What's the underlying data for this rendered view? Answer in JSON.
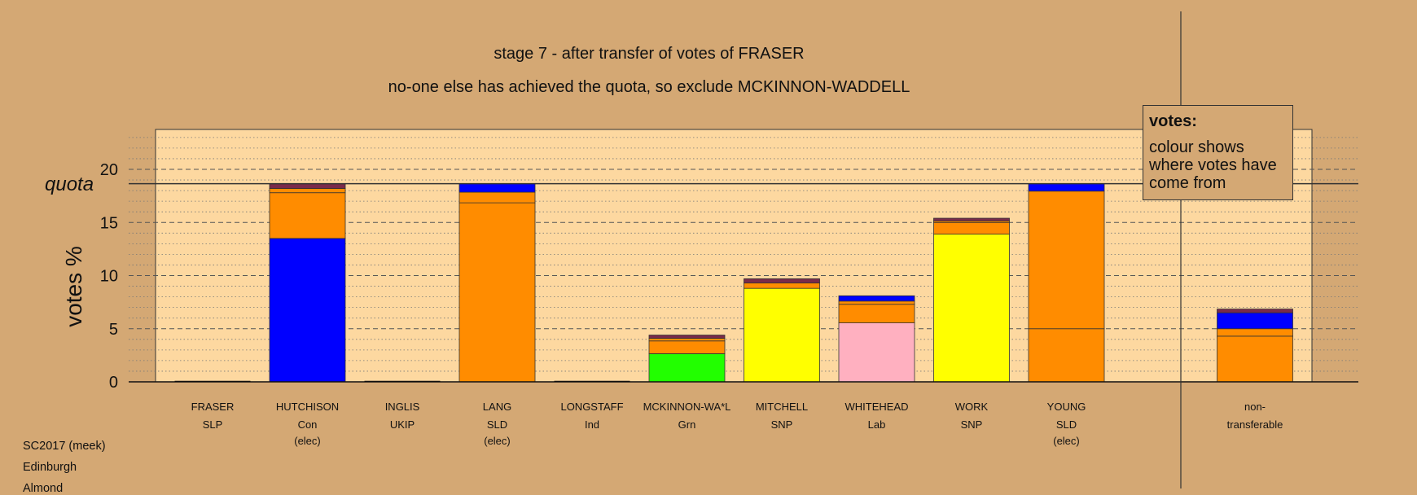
{
  "chart_data": {
    "type": "bar",
    "title": "stage 7 - after transfer of votes of FRASER",
    "subtitle": "no-one else has achieved the quota, so exclude MCKINNON-WADDELL",
    "ylabel": "votes %",
    "xlabel": "",
    "ylim": [
      0,
      23.5
    ],
    "yticks": [
      0,
      5,
      10,
      15,
      20
    ],
    "quota": 18.65,
    "quota_label": "quota",
    "grid": "dashed at major ticks, dotted at minor ticks",
    "legend": {
      "title": "votes:",
      "text": "colour shows where votes have come from",
      "placement": "top-right"
    },
    "colors": {
      "Con": "#0000ff",
      "SLD": "#ff8c00",
      "SNP": "#ffff00",
      "Lab": "#ffb0c0",
      "Grn": "#22ff00",
      "other": "#7a2a4a",
      "plot_background": "#fdd8a0",
      "page_background": "#d4a874"
    },
    "candidates": [
      {
        "name": "FRASER",
        "party": "SLP",
        "status": "",
        "segments": []
      },
      {
        "name": "HUTCHISON",
        "party": "Con",
        "status": "(elec)",
        "segments": [
          {
            "color": "#0000ff",
            "value": 13.5
          },
          {
            "color": "#ff8c00",
            "value": 4.3
          },
          {
            "color": "#ff8c00",
            "value": 0.4
          },
          {
            "color": "#7a2a4a",
            "value": 0.45
          }
        ]
      },
      {
        "name": "INGLIS",
        "party": "UKIP",
        "status": "",
        "segments": []
      },
      {
        "name": "LANG",
        "party": "SLD",
        "status": "(elec)",
        "segments": [
          {
            "color": "#ff8c00",
            "value": 16.85
          },
          {
            "color": "#ff8c00",
            "value": 1.0
          },
          {
            "color": "#0000ff",
            "value": 0.8
          }
        ]
      },
      {
        "name": "LONGSTAFF",
        "party": "Ind",
        "status": "",
        "segments": []
      },
      {
        "name": "MCKINNON-WA*L",
        "party": "Grn",
        "status": "",
        "segments": [
          {
            "color": "#22ff00",
            "value": 2.65
          },
          {
            "color": "#ff8c00",
            "value": 1.2
          },
          {
            "color": "#ff8c00",
            "value": 0.25
          },
          {
            "color": "#7a2a4a",
            "value": 0.3
          }
        ]
      },
      {
        "name": "MITCHELL",
        "party": "SNP",
        "status": "",
        "segments": [
          {
            "color": "#ffff00",
            "value": 8.8
          },
          {
            "color": "#ff8c00",
            "value": 0.5
          },
          {
            "color": "#7a2a4a",
            "value": 0.4
          }
        ]
      },
      {
        "name": "WHITEHEAD",
        "party": "Lab",
        "status": "",
        "segments": [
          {
            "color": "#ffb0c0",
            "value": 5.55
          },
          {
            "color": "#ff8c00",
            "value": 1.75
          },
          {
            "color": "#ff8c00",
            "value": 0.3
          },
          {
            "color": "#0000ff",
            "value": 0.5
          }
        ]
      },
      {
        "name": "WORK",
        "party": "SNP",
        "status": "",
        "segments": [
          {
            "color": "#ffff00",
            "value": 13.9
          },
          {
            "color": "#ff8c00",
            "value": 1.1
          },
          {
            "color": "#ff8c00",
            "value": 0.15
          },
          {
            "color": "#7a2a4a",
            "value": 0.25
          }
        ]
      },
      {
        "name": "YOUNG",
        "party": "SLD",
        "status": "(elec)",
        "segments": [
          {
            "color": "#ff8c00",
            "value": 5.0
          },
          {
            "color": "#ff8c00",
            "value": 12.95
          },
          {
            "color": "#0000ff",
            "value": 0.7
          }
        ]
      }
    ],
    "nontransferable": {
      "label_line1": "non-",
      "label_line2": "transferable",
      "segments": [
        {
          "color": "#ff8c00",
          "value": 4.3
        },
        {
          "color": "#ff8c00",
          "value": 0.7
        },
        {
          "color": "#0000ff",
          "value": 1.5
        },
        {
          "color": "#7a2a4a",
          "value": 0.35
        }
      ]
    }
  },
  "meta": {
    "line1": "SC2017 (meek)",
    "line2": "Edinburgh",
    "line3": "Almond"
  }
}
